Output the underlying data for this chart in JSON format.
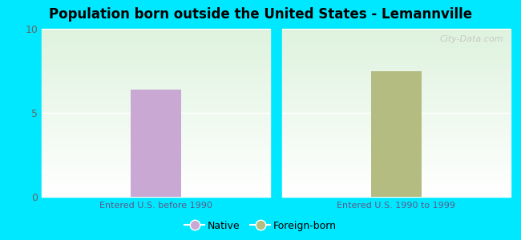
{
  "title": "Population born outside the United States - Lemannville",
  "groups": [
    "Entered U.S. before 1990",
    "Entered U.S. 1990 to 1999"
  ],
  "native_value": 6.4,
  "foreign_value": 7.5,
  "native_color": "#c9a8d4",
  "foreign_color": "#b5bc82",
  "ylim": [
    0,
    10
  ],
  "yticks": [
    0,
    5,
    10
  ],
  "background_color": "#00e8ff",
  "legend_native_label": "Native",
  "legend_foreign_label": "Foreign-born",
  "bar_width": 0.22,
  "watermark": "City-Data.com",
  "xlabel_color": "#5a5a8a",
  "ytick_color": "#666666"
}
